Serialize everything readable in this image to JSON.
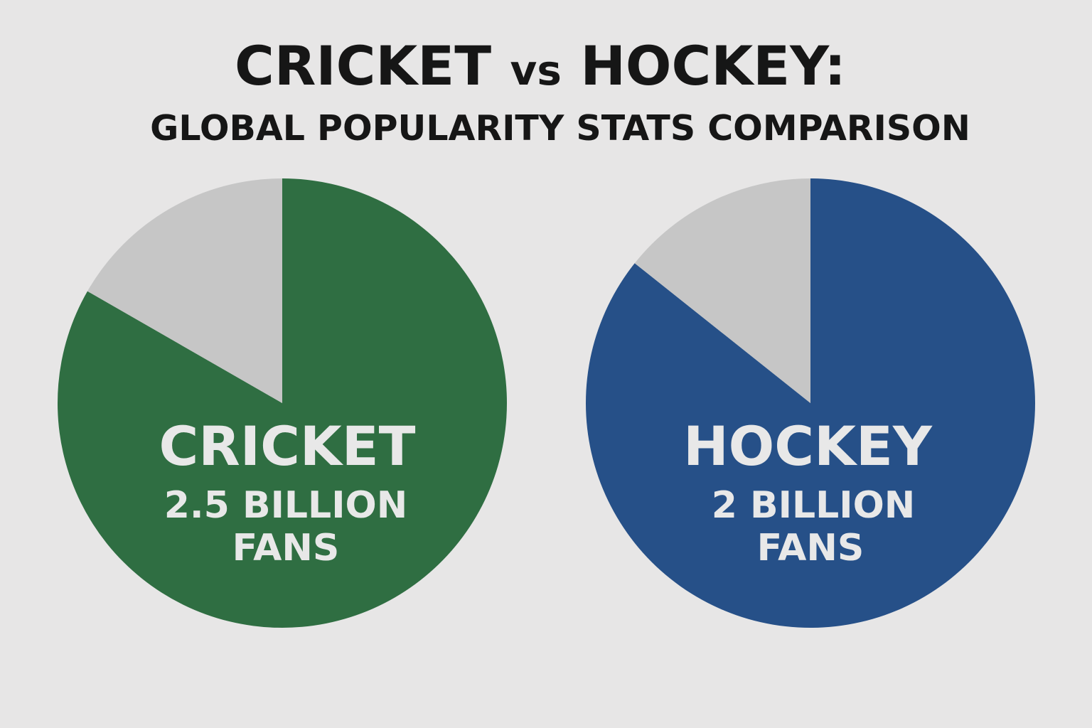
{
  "title": {
    "part1": "CRICKET",
    "vs": "vs",
    "part2": "HOCKEY:",
    "subtitle": "GLOBAL POPULARITY STATS COMPARISON"
  },
  "chart_data": [
    {
      "type": "pie",
      "name": "CRICKET",
      "value_line1": "2.5 BILLION",
      "value_line2": "FANS",
      "fans_billion": 2.5,
      "slices": [
        {
          "label": "CRICKET",
          "share": 0.833,
          "color": "#2f6e42"
        },
        {
          "label": "",
          "share": 0.167,
          "color": "#c6c6c6"
        }
      ]
    },
    {
      "type": "pie",
      "name": "HOCKEY",
      "value_line1": "2 BILLION",
      "value_line2": "FANS",
      "fans_billion": 2,
      "slices": [
        {
          "label": "HOCKEY",
          "share": 0.857,
          "color": "#265088"
        },
        {
          "label": "",
          "share": 0.143,
          "color": "#c6c6c6"
        }
      ]
    }
  ]
}
